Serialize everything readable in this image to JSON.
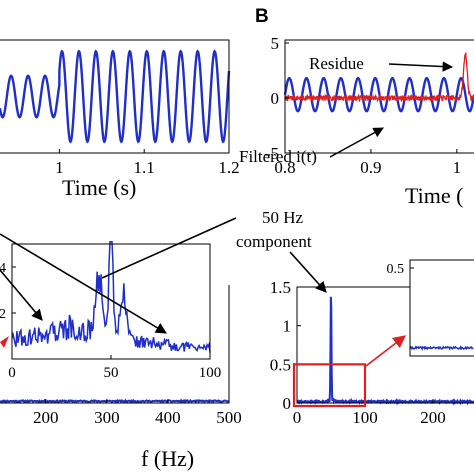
{
  "panel_label": "B",
  "colors": {
    "signal": "#1f2fc8",
    "residue": "#e02020",
    "box": "#e02020",
    "axis": "#000000"
  },
  "annotations": {
    "component_line1": "50 Hz",
    "component_line2": "component",
    "residue": "Residue",
    "filtered": "Filtered i(t)"
  },
  "chart_data": [
    {
      "id": "time_left",
      "type": "line",
      "xlabel": "Time (s)",
      "xlim": [
        0.93,
        1.2
      ],
      "ylim": [
        -6,
        6
      ],
      "xticks": [
        1,
        1.1,
        1.2
      ],
      "xtick_labels": [
        "1",
        "1.1",
        "1.2"
      ],
      "series": [
        {
          "segments": [
            {
              "x0": 0.93,
              "x1": 1.0,
              "freq_hz": 50,
              "amplitude": 2.2,
              "offset": 0
            },
            {
              "x0": 1.0,
              "x1": 1.2,
              "freq_hz": 50,
              "amplitude": 4.8,
              "offset": 0
            }
          ]
        }
      ]
    },
    {
      "id": "time_right",
      "type": "line",
      "xlabel": "Time (",
      "xlim": [
        0.8,
        1.02
      ],
      "ylim": [
        -5,
        5
      ],
      "xticks": [
        0.8,
        0.9,
        1
      ],
      "xtick_labels": [
        "0.8",
        "0.9",
        "1"
      ],
      "yticks": [
        -5,
        0,
        5
      ],
      "ytick_labels": [
        "-5",
        "0",
        "5"
      ],
      "series": [
        {
          "name": "Filtered i(t)",
          "freq_hz": 50,
          "amplitude": 1.5,
          "offset": 0.3
        },
        {
          "name": "Residue",
          "noise_amplitude": 0.25,
          "spike_x": 1.01,
          "spike_value": 4
        }
      ]
    },
    {
      "id": "spectrum_left",
      "type": "line",
      "xlabel": "f (Hz)",
      "xlim": [
        125,
        500
      ],
      "ylim": [
        0,
        1
      ],
      "xticks": [
        200,
        300,
        400,
        500
      ],
      "xtick_labels": [
        "200",
        "300",
        "400",
        "500"
      ],
      "series": [
        {
          "baseline": 0.01
        }
      ]
    },
    {
      "id": "spectrum_left_inset",
      "type": "line",
      "xlim": [
        0,
        100
      ],
      "ylim": [
        0,
        5
      ],
      "xticks": [
        0,
        50,
        100
      ],
      "xtick_labels": [
        "0",
        "50",
        "100"
      ],
      "yticks": [
        2,
        4
      ],
      "ytick_labels": [
        "2",
        "4"
      ],
      "series": [
        {
          "peak_x": 50,
          "peak_value": 5,
          "secondary_peak": 3,
          "floor_value": 1.2
        }
      ]
    },
    {
      "id": "spectrum_right",
      "type": "line",
      "xlim": [
        0,
        300
      ],
      "ylim": [
        0,
        1.5
      ],
      "xticks": [
        0,
        100,
        200
      ],
      "xtick_labels": [
        "0",
        "100",
        "200"
      ],
      "yticks": [
        0,
        0.5,
        1,
        1.5
      ],
      "ytick_labels": [
        "0",
        "0.5",
        "1",
        "1.5"
      ],
      "series": [
        {
          "peak_x": 50,
          "peak_value": 1.4,
          "floor_value": 0.02
        }
      ],
      "zoom_box": {
        "xlim": [
          0,
          100
        ],
        "ylim": [
          0,
          0.5
        ]
      }
    },
    {
      "id": "spectrum_right_inset",
      "type": "line",
      "ylim": [
        0,
        0.5
      ],
      "yticks": [
        0.5
      ],
      "ytick_labels": [
        "0.5"
      ],
      "series": [
        {
          "floor_value": 0.04
        }
      ]
    }
  ]
}
